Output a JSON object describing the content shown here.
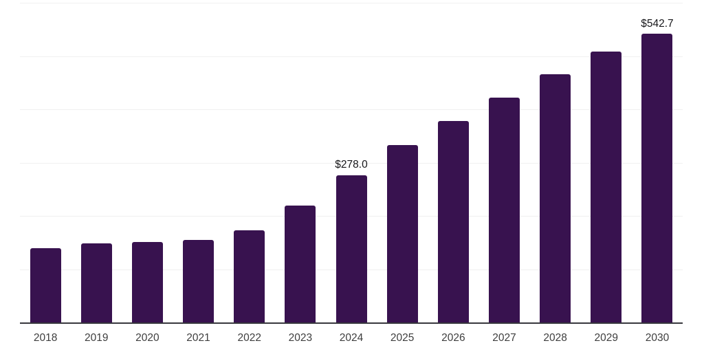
{
  "chart_data": {
    "type": "bar",
    "title": "",
    "xlabel": "",
    "ylabel": "",
    "categories": [
      "2018",
      "2019",
      "2020",
      "2021",
      "2022",
      "2023",
      "2024",
      "2025",
      "2026",
      "2027",
      "2028",
      "2029",
      "2030"
    ],
    "values": [
      141,
      150,
      152,
      156,
      174,
      221,
      278.0,
      334,
      379,
      423,
      467,
      510,
      542.7
    ],
    "bar_labels": [
      "",
      "",
      "",
      "",
      "",
      "",
      "$278.0",
      "",
      "",
      "",
      "",
      "",
      "$542.7"
    ],
    "ylim": [
      0,
      600
    ],
    "gridline_values": [
      100,
      200,
      300,
      400,
      500,
      600
    ],
    "grid": "horizontal-only",
    "legend_position": "none",
    "colors": {
      "bar": "#38124F",
      "axis_line": "#37373d",
      "gridline": "#f0f0f0",
      "bar_label_text": "#161619",
      "tick_label_text": "#3e3e3e",
      "background": "#ffffff"
    }
  }
}
